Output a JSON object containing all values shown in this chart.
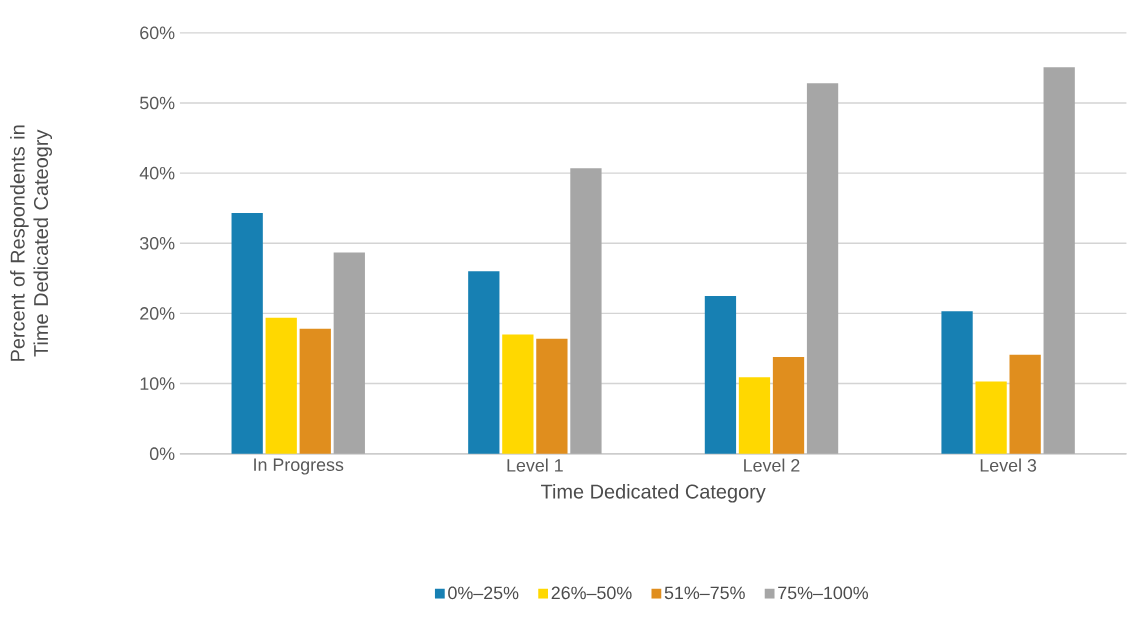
{
  "chart_data": {
    "type": "bar",
    "xlabel": "Time Dedicated Category",
    "ylabel": "Percent of Respondents in Time Dedicated Cateogry",
    "categories": [
      "In Progress",
      "Level 1",
      "Level 2",
      "Level 3"
    ],
    "series": [
      {
        "name": "0%–25%",
        "color": "#1780b3",
        "values": [
          34.3,
          26.0,
          22.5,
          20.3
        ]
      },
      {
        "name": "26%–50%",
        "color": "#ffd800",
        "values": [
          19.4,
          17.0,
          10.9,
          10.3
        ]
      },
      {
        "name": "51%–75%",
        "color": "#e08e1e",
        "values": [
          17.8,
          16.4,
          13.8,
          14.1
        ]
      },
      {
        "name": "75%–100%",
        "color": "#a6a6a6",
        "values": [
          28.7,
          40.7,
          52.8,
          55.1
        ]
      }
    ],
    "ylim": [
      0,
      60
    ],
    "yticks": [
      {
        "value": 0,
        "label": "0%"
      },
      {
        "value": 10,
        "label": "10%"
      },
      {
        "value": 20,
        "label": "20%"
      },
      {
        "value": 30,
        "label": "30%"
      },
      {
        "value": 40,
        "label": "40%"
      },
      {
        "value": 50,
        "label": "50%"
      },
      {
        "value": 60,
        "label": "60%"
      }
    ],
    "grid": "y",
    "legend": "bottom"
  }
}
